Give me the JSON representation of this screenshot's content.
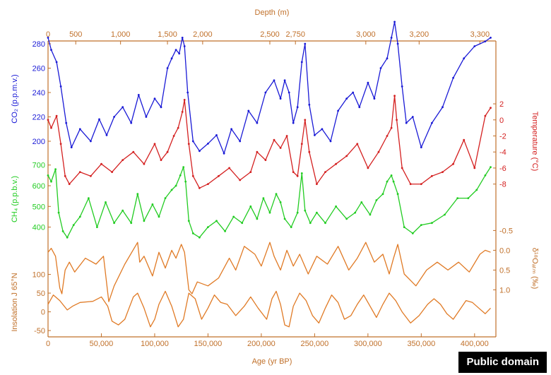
{
  "credit": "Public domain",
  "colors": {
    "axis": "#c0702a",
    "co2": "#1a1ad6",
    "temperature": "#d42020",
    "ch4": "#22cc22",
    "d18o": "#e07a25",
    "insolation": "#e07a25"
  },
  "chart_data": {
    "type": "line",
    "x_axis": {
      "label": "Age (yr BP)",
      "range": [
        0,
        420000
      ],
      "ticks": [
        "0",
        "50,000",
        "100,000",
        "150,000",
        "200,000",
        "250,000",
        "300,000",
        "350,000",
        "400,000"
      ],
      "tick_values": [
        0,
        50000,
        100000,
        150000,
        200000,
        250000,
        300000,
        350000,
        400000
      ]
    },
    "top_axis": {
      "label": "Depth (m)",
      "ticks": [
        "0",
        "500",
        "1,000",
        "1,500",
        "2,000",
        "2,500",
        "2,750",
        "3,000",
        "3,200",
        "3,300"
      ],
      "tick_ages": [
        0,
        26000,
        68000,
        112000,
        145000,
        208000,
        232000,
        298000,
        348000,
        405000
      ]
    },
    "series": [
      {
        "name": "CO2 (p.p.m.v.)",
        "axis_side": "left",
        "axis_label": "CO₂ (p.p.m.v.)",
        "ticks": [
          "280",
          "260",
          "240",
          "220",
          "200"
        ],
        "tick_values": [
          280,
          260,
          240,
          220,
          200
        ],
        "range": [
          200,
          280
        ],
        "x": [
          0,
          3000,
          8000,
          12000,
          17000,
          22000,
          30000,
          40000,
          48000,
          55000,
          62000,
          70000,
          78000,
          85000,
          92000,
          100000,
          106000,
          112000,
          116000,
          120000,
          123000,
          126000,
          128000,
          131000,
          136000,
          142000,
          150000,
          158000,
          165000,
          172000,
          180000,
          188000,
          196000,
          204000,
          212000,
          218000,
          222000,
          226000,
          230000,
          234000,
          238000,
          241000,
          245000,
          250000,
          257000,
          265000,
          272000,
          280000,
          286000,
          292000,
          300000,
          306000,
          312000,
          318000,
          322000,
          325000,
          328000,
          332000,
          336000,
          342000,
          350000,
          360000,
          370000,
          380000,
          390000,
          400000,
          410000,
          415000
        ],
        "values": [
          285,
          275,
          265,
          245,
          215,
          195,
          210,
          200,
          218,
          205,
          220,
          228,
          215,
          238,
          220,
          235,
          228,
          260,
          268,
          275,
          272,
          285,
          278,
          240,
          200,
          192,
          198,
          205,
          190,
          210,
          200,
          225,
          215,
          240,
          250,
          235,
          250,
          240,
          215,
          228,
          265,
          280,
          230,
          205,
          210,
          200,
          225,
          235,
          240,
          228,
          248,
          235,
          260,
          268,
          285,
          298,
          280,
          245,
          215,
          220,
          195,
          215,
          228,
          252,
          268,
          278,
          282,
          285
        ]
      },
      {
        "name": "Temperature (°C)",
        "axis_side": "right",
        "axis_label": "Temperature (°C)",
        "ticks": [
          "2",
          "0",
          "-2",
          "-4",
          "-6",
          "-8"
        ],
        "tick_values": [
          2,
          0,
          -2,
          -4,
          -6,
          -8
        ],
        "range": [
          -9,
          3.5
        ],
        "x": [
          0,
          3000,
          8000,
          12000,
          16000,
          20000,
          30000,
          40000,
          50000,
          60000,
          70000,
          80000,
          90000,
          100000,
          106000,
          112000,
          118000,
          122000,
          126000,
          128000,
          132000,
          136000,
          142000,
          150000,
          160000,
          170000,
          180000,
          190000,
          196000,
          204000,
          212000,
          218000,
          224000,
          230000,
          234000,
          238000,
          241000,
          245000,
          252000,
          260000,
          270000,
          280000,
          290000,
          300000,
          310000,
          318000,
          322000,
          325000,
          327000,
          332000,
          340000,
          350000,
          360000,
          370000,
          380000,
          390000,
          400000,
          410000,
          415000
        ],
        "values": [
          0,
          -1,
          0.5,
          -3,
          -7,
          -8,
          -6.5,
          -7,
          -5.5,
          -6.5,
          -5,
          -4,
          -5.5,
          -3,
          -5,
          -4,
          -2,
          -1,
          1,
          2.5,
          -3,
          -7,
          -8.5,
          -8,
          -7,
          -6,
          -7.5,
          -6.5,
          -4,
          -5,
          -2.5,
          -3.5,
          -2,
          -6.5,
          -7,
          -3,
          0,
          -4,
          -8,
          -6.5,
          -5.5,
          -4.5,
          -3,
          -6,
          -4,
          -2,
          -1,
          3,
          0,
          -6,
          -8,
          -8,
          -7,
          -6.5,
          -5.5,
          -2.5,
          -6,
          0.5,
          1.5
        ]
      },
      {
        "name": "CH4 (p.p.b.v.)",
        "axis_side": "left",
        "axis_label": "CH₄ (p.p.b.v.)",
        "ticks": [
          "700",
          "600",
          "500",
          "400"
        ],
        "tick_values": [
          700,
          600,
          500,
          400
        ],
        "range": [
          320,
          740
        ],
        "x": [
          0,
          3000,
          7000,
          10000,
          14000,
          18000,
          24000,
          30000,
          38000,
          46000,
          54000,
          62000,
          70000,
          78000,
          84000,
          90000,
          98000,
          104000,
          110000,
          116000,
          120000,
          124000,
          127000,
          129000,
          132000,
          136000,
          142000,
          150000,
          158000,
          166000,
          174000,
          182000,
          190000,
          196000,
          202000,
          208000,
          214000,
          218000,
          222000,
          228000,
          234000,
          238000,
          241000,
          246000,
          252000,
          260000,
          270000,
          280000,
          288000,
          294000,
          302000,
          308000,
          314000,
          318000,
          322000,
          324000,
          328000,
          334000,
          342000,
          350000,
          360000,
          372000,
          384000,
          394000,
          402000,
          410000,
          415000
        ],
        "values": [
          650,
          620,
          680,
          470,
          380,
          350,
          410,
          450,
          540,
          400,
          520,
          420,
          480,
          420,
          560,
          430,
          510,
          450,
          540,
          580,
          600,
          650,
          690,
          620,
          430,
          370,
          350,
          400,
          430,
          380,
          450,
          420,
          500,
          440,
          540,
          470,
          560,
          520,
          440,
          400,
          470,
          660,
          480,
          420,
          470,
          420,
          500,
          440,
          470,
          520,
          460,
          530,
          560,
          620,
          650,
          620,
          560,
          400,
          370,
          410,
          420,
          460,
          540,
          540,
          580,
          650,
          690
        ]
      },
      {
        "name": "δ18Oatm (‰)",
        "axis_side": "right",
        "axis_label": "δ¹⁸Oₐₜₘ (‰)",
        "ticks": [
          "-0.5",
          "0.0",
          "0.5",
          "1.0"
        ],
        "tick_values": [
          -0.5,
          0,
          0.5,
          1.0
        ],
        "range": [
          -0.65,
          1.35
        ],
        "x": [
          0,
          3000,
          7000,
          11000,
          13000,
          16000,
          20000,
          25000,
          35000,
          45000,
          52000,
          57000,
          62000,
          72000,
          84000,
          86000,
          90000,
          98000,
          104000,
          110000,
          116000,
          120000,
          125000,
          128000,
          132000,
          135000,
          140000,
          150000,
          160000,
          170000,
          176000,
          184000,
          194000,
          200000,
          208000,
          212000,
          218000,
          224000,
          230000,
          236000,
          244000,
          252000,
          262000,
          272000,
          282000,
          290000,
          298000,
          306000,
          314000,
          320000,
          324000,
          328000,
          334000,
          345000,
          355000,
          365000,
          375000,
          385000,
          395000,
          405000,
          410000,
          415000
        ],
        "values": [
          0.05,
          -0.05,
          0.15,
          0.95,
          1.1,
          0.5,
          0.3,
          0.55,
          0.2,
          0.35,
          0.15,
          1.3,
          0.9,
          0.35,
          -0.2,
          0.3,
          0.15,
          0.65,
          0.05,
          0.45,
          0.0,
          0.2,
          -0.15,
          0.05,
          1.0,
          1.1,
          0.8,
          0.9,
          0.7,
          0.2,
          0.5,
          -0.1,
          0.1,
          0.4,
          -0.2,
          0.15,
          0.5,
          0.0,
          0.4,
          0.1,
          0.6,
          0.15,
          0.35,
          -0.1,
          0.5,
          0.2,
          -0.2,
          0.3,
          0.1,
          0.6,
          0.2,
          -0.15,
          0.6,
          0.9,
          0.5,
          0.3,
          0.5,
          0.3,
          0.55,
          0.1,
          0.0,
          0.05
        ]
      },
      {
        "name": "Insolation J 65°N",
        "axis_side": "left",
        "axis_label": "Insolation J 65°N",
        "ticks": [
          "100",
          "50",
          "0",
          "-50"
        ],
        "tick_values": [
          100,
          50,
          0,
          -50
        ],
        "range": [
          -65,
          135
        ],
        "x": [
          0,
          5000,
          11000,
          18000,
          23000,
          30000,
          42000,
          50000,
          56000,
          60000,
          66000,
          72000,
          76000,
          80000,
          84000,
          90000,
          96000,
          100000,
          104000,
          110000,
          116000,
          122000,
          127000,
          132000,
          138000,
          144000,
          150000,
          156000,
          162000,
          168000,
          176000,
          184000,
          190000,
          197000,
          205000,
          210000,
          214000,
          218000,
          222000,
          226000,
          230000,
          236000,
          242000,
          248000,
          254000,
          260000,
          266000,
          272000,
          278000,
          284000,
          290000,
          296000,
          302000,
          308000,
          314000,
          320000,
          326000,
          332000,
          340000,
          348000,
          356000,
          362000,
          368000,
          374000,
          380000,
          386000,
          392000,
          398000,
          404000,
          410000,
          415000
        ],
        "values": [
          20,
          45,
          30,
          5,
          15,
          25,
          28,
          40,
          15,
          -25,
          -35,
          -20,
          10,
          40,
          50,
          10,
          -40,
          -20,
          20,
          55,
          15,
          -40,
          -20,
          50,
          35,
          -20,
          10,
          45,
          25,
          20,
          -10,
          15,
          40,
          10,
          -20,
          35,
          55,
          20,
          -35,
          -40,
          15,
          50,
          30,
          -10,
          -30,
          10,
          45,
          25,
          -20,
          -10,
          20,
          45,
          15,
          -15,
          20,
          50,
          30,
          0,
          -30,
          -10,
          20,
          35,
          20,
          -5,
          -20,
          5,
          30,
          25,
          10,
          -5,
          10
        ]
      }
    ]
  }
}
